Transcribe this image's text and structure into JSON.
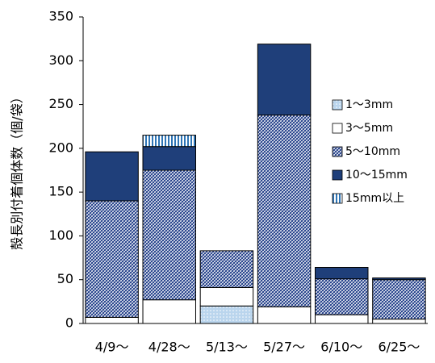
{
  "chart_data": {
    "type": "stacked-bar",
    "y_label": "殻長別付着個体数（個/袋）",
    "categories": [
      "4/9〜",
      "4/28〜",
      "5/13〜",
      "5/27〜",
      "6/10〜",
      "6/25〜"
    ],
    "series": [
      {
        "name": "1〜3mm",
        "color": "#9dc3e6",
        "pattern": "dots",
        "values": [
          0,
          0,
          20,
          0,
          0,
          0
        ]
      },
      {
        "name": "3〜5mm",
        "color": "#ffffff",
        "pattern": "solid",
        "values": [
          7,
          27,
          21,
          19,
          10,
          5
        ]
      },
      {
        "name": "5〜10mm",
        "color": "#1f3c88",
        "pattern": "hatch",
        "values": [
          133,
          148,
          42,
          219,
          41,
          45
        ]
      },
      {
        "name": "10〜15mm",
        "color": "#1f3f7a",
        "pattern": "solid",
        "values": [
          56,
          27,
          0,
          81,
          13,
          2
        ]
      },
      {
        "name": "15mm以上",
        "color": "#2e75b6",
        "pattern": "vstripes",
        "values": [
          0,
          13,
          0,
          0,
          0,
          0
        ]
      }
    ],
    "ylim": [
      0,
      350
    ],
    "yticks": [
      0,
      50,
      100,
      150,
      200,
      250,
      300,
      350
    ]
  }
}
